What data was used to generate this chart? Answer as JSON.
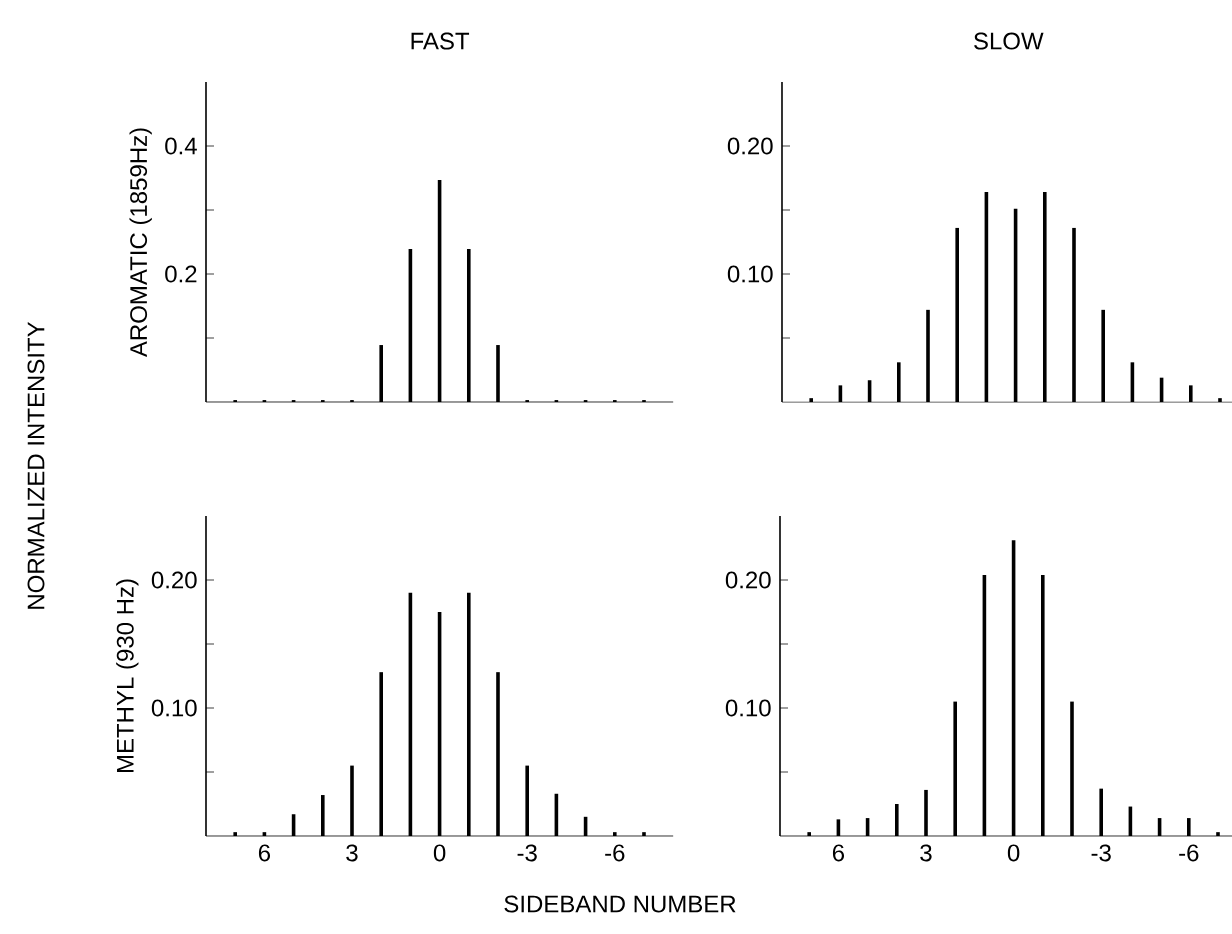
{
  "chart_data": [
    {
      "type": "bar",
      "title": "FAST",
      "ylabel": "AROMATIC (1859Hz)",
      "color": "#000000",
      "tick_labels": "y",
      "x": [
        7,
        6,
        5,
        4,
        3,
        2,
        1,
        0,
        -1,
        -2,
        -3,
        -4,
        -5,
        -6,
        -7
      ],
      "values": [
        0.003,
        0.003,
        0.003,
        0.003,
        0.003,
        0.089,
        0.239,
        0.347,
        0.239,
        0.089,
        0.003,
        0.003,
        0.003,
        0.003,
        0.003
      ],
      "xlim": [
        8,
        -8
      ],
      "ylim": [
        0,
        0.5
      ],
      "yticks": [
        {
          "value": 0.1,
          "label": null
        },
        0.2,
        {
          "value": 0.3,
          "label": null
        },
        0.4
      ],
      "annotations": [
        "NORMALIZED INTENSITY"
      ]
    },
    {
      "type": "bar",
      "title": "SLOW",
      "color": "#000000",
      "tick_labels": "y",
      "x": [
        7,
        6,
        5,
        4,
        3,
        2,
        1,
        0,
        -1,
        -2,
        -3,
        -4,
        -5,
        -6,
        -7
      ],
      "values": [
        0.003,
        0.013,
        0.017,
        0.031,
        0.072,
        0.136,
        0.164,
        0.151,
        0.164,
        0.136,
        0.072,
        0.031,
        0.019,
        0.013,
        0.003
      ],
      "xlim": [
        8,
        -7.5
      ],
      "ylim": [
        0,
        0.25
      ],
      "yticks": [
        {
          "value": 0.05,
          "label": null
        },
        {
          "value": 0.1,
          "label": "0.10"
        },
        {
          "value": 0.15,
          "label": null
        },
        {
          "value": 0.2,
          "label": "0.20"
        }
      ]
    },
    {
      "type": "bar",
      "ylabel": "METHYL (930 Hz)",
      "color": "#000000",
      "x": [
        7,
        6,
        5,
        4,
        3,
        2,
        1,
        0,
        -1,
        -2,
        -3,
        -4,
        -5,
        -6,
        -7
      ],
      "values": [
        0.003,
        0.003,
        0.017,
        0.032,
        0.055,
        0.128,
        0.19,
        0.175,
        0.19,
        0.128,
        0.055,
        0.033,
        0.015,
        0.003,
        0.003
      ],
      "xlim": [
        8,
        -8
      ],
      "ylim": [
        0,
        0.25
      ],
      "xticks": [
        6,
        3,
        0,
        -3,
        -6
      ],
      "yticks": [
        {
          "value": 0.05,
          "label": null
        },
        {
          "value": 0.1,
          "label": "0.10"
        },
        {
          "value": 0.15,
          "label": null
        },
        {
          "value": 0.2,
          "label": "0.20"
        }
      ],
      "annotations": [
        "SIDEBAND NUMBER"
      ]
    },
    {
      "type": "bar",
      "color": "#000000",
      "x": [
        7,
        6,
        5,
        4,
        3,
        2,
        1,
        0,
        -1,
        -2,
        -3,
        -4,
        -5,
        -6,
        -7
      ],
      "values": [
        0.003,
        0.013,
        0.014,
        0.025,
        0.036,
        0.105,
        0.204,
        0.231,
        0.204,
        0.105,
        0.037,
        0.023,
        0.014,
        0.014,
        0.003
      ],
      "xlim": [
        8,
        -7.5
      ],
      "ylim": [
        0,
        0.25
      ],
      "xticks": [
        6,
        3,
        0,
        -3,
        -6
      ],
      "yticks": [
        {
          "value": 0.05,
          "label": null
        },
        {
          "value": 0.1,
          "label": "0.10"
        },
        {
          "value": 0.15,
          "label": null
        },
        {
          "value": 0.2,
          "label": "0.20"
        }
      ]
    }
  ]
}
